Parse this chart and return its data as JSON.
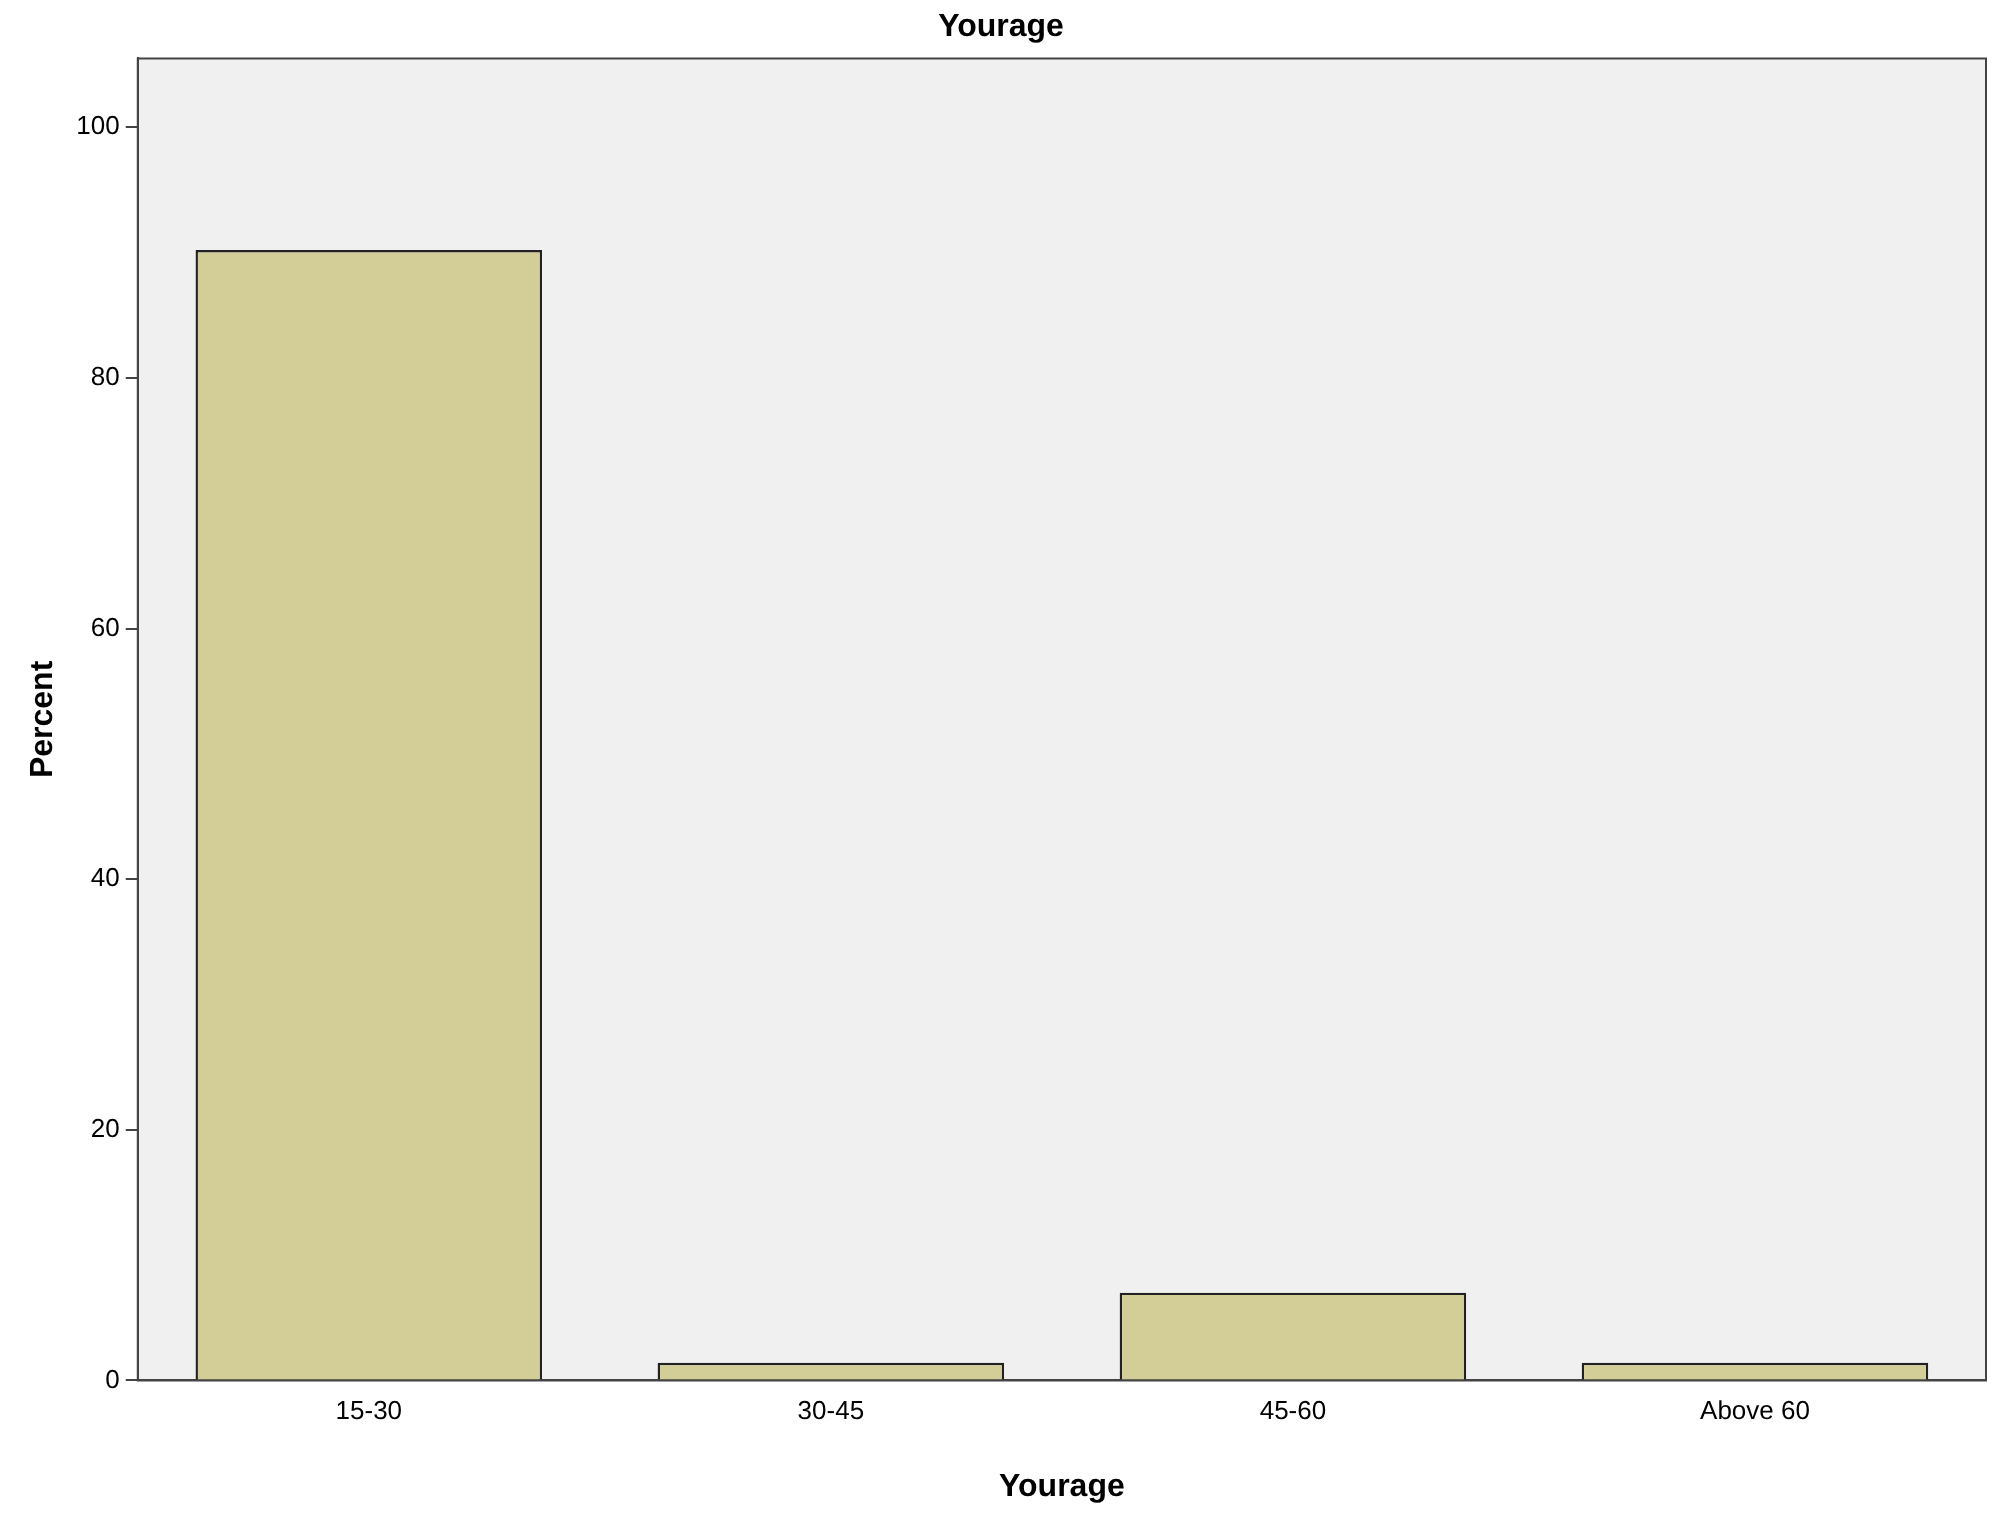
{
  "chart_data": {
    "type": "bar",
    "title": "Yourage",
    "xlabel": "Yourage",
    "ylabel": "Percent",
    "categories": [
      "15-30",
      "30-45",
      "45-60",
      "Above 60"
    ],
    "values": [
      90.2,
      1.4,
      7.0,
      1.4
    ],
    "color": "#d3ce97",
    "ylim": [
      0,
      105.5
    ],
    "yticks": [
      0,
      20,
      40,
      60,
      80,
      100
    ],
    "grid": false
  }
}
